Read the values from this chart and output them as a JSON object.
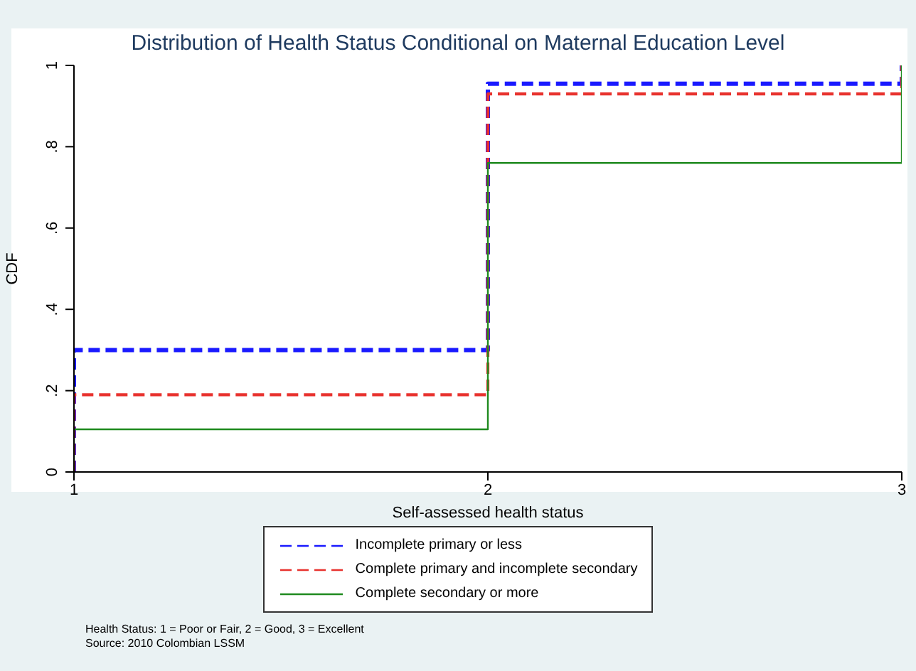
{
  "chart_data": {
    "type": "step",
    "title": "Distribution of Health Status Conditional on Maternal Education Level",
    "xlabel": "Self-assessed health status",
    "ylabel": "CDF",
    "x": [
      1,
      1,
      2,
      3
    ],
    "series": [
      {
        "name": "Incomplete primary or less",
        "color": "#1a1aff",
        "line_style": "dashed",
        "values": [
          0,
          0.3,
          0.955,
          1
        ]
      },
      {
        "name": "Complete primary and incomplete secondary",
        "color": "#e8322e",
        "line_style": "dashed",
        "values": [
          0,
          0.19,
          0.93,
          1
        ]
      },
      {
        "name": "Complete secondary or more",
        "color": "#1f8a1f",
        "line_style": "solid",
        "values": [
          0,
          0.105,
          0.76,
          1
        ]
      }
    ],
    "xlim": [
      1,
      3
    ],
    "xticks": [
      1,
      2,
      3
    ],
    "ylim": [
      0,
      1
    ],
    "yticks": [
      {
        "value": 0,
        "label": "0"
      },
      {
        "value": 0.2,
        "label": ".2"
      },
      {
        "value": 0.4,
        "label": ".4"
      },
      {
        "value": 0.6,
        "label": ".6"
      },
      {
        "value": 0.8,
        "label": ".8"
      },
      {
        "value": 1,
        "label": "1"
      }
    ],
    "grid": false,
    "legend": "bottom",
    "marker": "none",
    "annotations": [
      "Health Status: 1 = Poor or Fair, 2 = Good, 3 = Excellent",
      "Source: 2010 Colombian LSSM"
    ]
  }
}
